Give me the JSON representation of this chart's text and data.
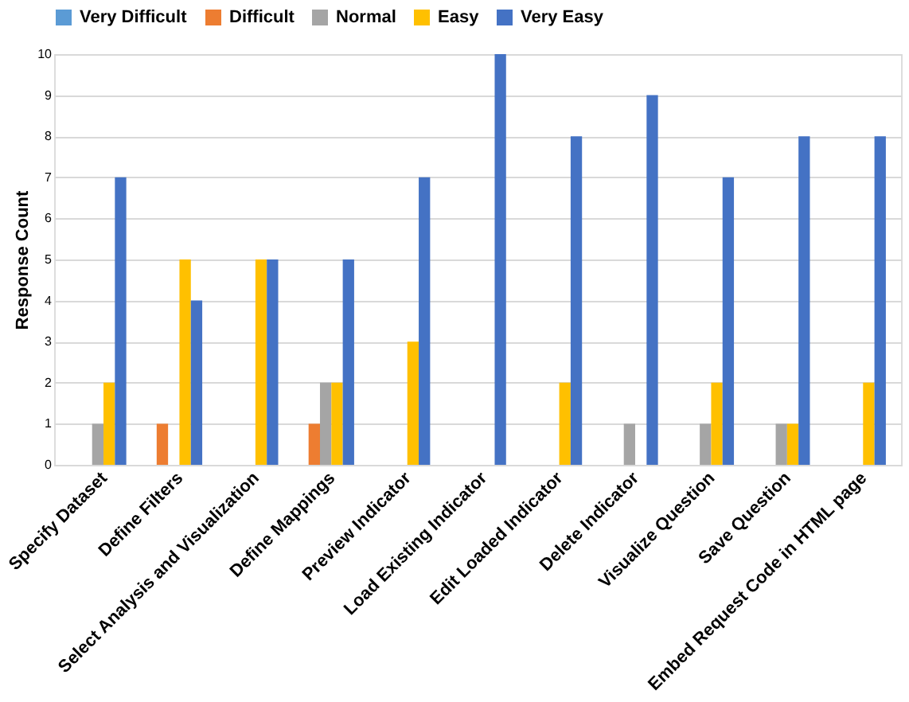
{
  "chart_data": {
    "type": "bar",
    "ylabel": "Response Count",
    "categories": [
      "Specify Dataset",
      "Define Filters",
      "Select Analysis and Visualization",
      "Define Mappings",
      "Preview Indicator",
      "Load Existing Indicator",
      "Edit Loaded Indicator",
      "Delete Indicator",
      "Visualize Question",
      "Save Question",
      "Embed Request Code in HTML page"
    ],
    "series": [
      {
        "name": "Very Difficult",
        "color": "#5b9bd5",
        "values": [
          0,
          0,
          0,
          0,
          0,
          0,
          0,
          0,
          0,
          0,
          0
        ]
      },
      {
        "name": "Difficult",
        "color": "#ed7d31",
        "values": [
          0,
          1,
          0,
          1,
          0,
          0,
          0,
          0,
          0,
          0,
          0
        ]
      },
      {
        "name": "Normal",
        "color": "#a5a5a5",
        "values": [
          1,
          0,
          0,
          2,
          0,
          0,
          0,
          1,
          1,
          1,
          0
        ]
      },
      {
        "name": "Easy",
        "color": "#ffc000",
        "values": [
          2,
          5,
          5,
          2,
          3,
          0,
          2,
          0,
          2,
          1,
          2
        ]
      },
      {
        "name": "Very Easy",
        "color": "#4472c4",
        "values": [
          7,
          4,
          5,
          5,
          7,
          10,
          8,
          9,
          7,
          8,
          8
        ]
      }
    ],
    "ylim": [
      0,
      10
    ],
    "yticks": [
      0,
      1,
      2,
      3,
      4,
      5,
      6,
      7,
      8,
      9,
      10
    ],
    "grid": "y",
    "legend": "top"
  }
}
